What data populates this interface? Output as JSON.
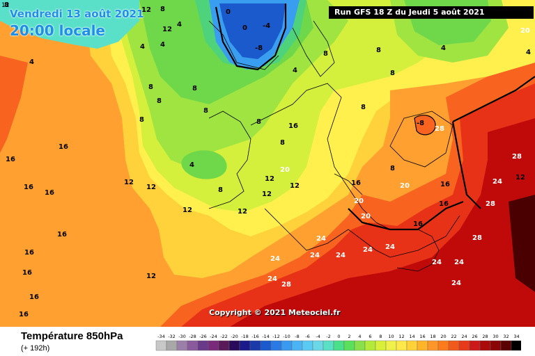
{
  "map": {
    "valid_date": "Vendredi 13 août 2021",
    "valid_time": "20:00 locale",
    "run": "Run GFS 18 Z du Jeudi 5 août 2021",
    "copyright": "Copyright © 2021 Meteociel.fr",
    "corner_label": "12"
  },
  "legend": {
    "title": "Température 850hPa",
    "subtitle": "(+ 192h)",
    "ticks": [
      "-34",
      "-32",
      "-30",
      "-28",
      "-26",
      "-24",
      "-22",
      "-20",
      "-18",
      "-16",
      "-14",
      "-12",
      "-10",
      "-8",
      "-6",
      "-4",
      "-2",
      "0",
      "2",
      "4",
      "6",
      "8",
      "10",
      "12",
      "14",
      "16",
      "18",
      "20",
      "22",
      "24",
      "26",
      "28",
      "30",
      "32",
      "34"
    ],
    "colors": [
      "#c8c8c8",
      "#a8a8a8",
      "#9c7fa8",
      "#8a5a9c",
      "#6a3a8a",
      "#7a2a7a",
      "#5a1a5a",
      "#2a0a5a",
      "#1a1a8a",
      "#1a3aaa",
      "#1a5acc",
      "#2a7ae6",
      "#3a9af0",
      "#4ab4f4",
      "#5acaf4",
      "#6ad8e6",
      "#5ae0c4",
      "#4ae08a",
      "#5ae05a",
      "#8ae04a",
      "#b4ea3a",
      "#d8f03a",
      "#f0f04a",
      "#ffe84a",
      "#ffd23a",
      "#ffb42a",
      "#ff962a",
      "#ff7a1a",
      "#f05a1a",
      "#e63a1a",
      "#cc1a1a",
      "#aa0a0a",
      "#8a0505",
      "#5a0202",
      "#000000"
    ]
  },
  "colors": {
    "t28": "#c00a0a",
    "t24": "#e83218",
    "t20": "#f86420",
    "t16": "#ffa030",
    "t12": "#ffd23c",
    "t10": "#fff04e",
    "t8": "#d4f03c",
    "t6": "#a0e442",
    "t4": "#6ed84a",
    "t2": "#4ed27c",
    "t0": "#5ae0c8",
    "tm4": "#3a9ef0",
    "tm8": "#1a5acc"
  },
  "labels": [
    {
      "t": "16"
    },
    {
      "t": "16"
    },
    {
      "t": "16"
    },
    {
      "t": "16"
    },
    {
      "t": "16"
    },
    {
      "t": "16"
    },
    {
      "t": "16"
    },
    {
      "t": "16"
    },
    {
      "t": "16"
    },
    {
      "t": "12"
    },
    {
      "t": "12"
    },
    {
      "t": "12"
    },
    {
      "t": "12"
    },
    {
      "t": "12"
    },
    {
      "t": "12"
    },
    {
      "t": "12"
    },
    {
      "t": "8"
    },
    {
      "t": "8"
    },
    {
      "t": "8"
    },
    {
      "t": "8"
    },
    {
      "t": "8"
    },
    {
      "t": "8"
    },
    {
      "t": "8"
    },
    {
      "t": "8"
    },
    {
      "t": "8"
    },
    {
      "t": "8"
    },
    {
      "t": "8"
    },
    {
      "t": "8"
    },
    {
      "t": "8"
    },
    {
      "t": "4"
    },
    {
      "t": "4"
    },
    {
      "t": "4"
    },
    {
      "t": "4"
    },
    {
      "t": "4"
    },
    {
      "t": "4"
    },
    {
      "t": "0"
    },
    {
      "t": "0"
    },
    {
      "t": "-4"
    },
    {
      "t": "-8"
    },
    {
      "t": "-8"
    },
    {
      "t": "20"
    },
    {
      "t": "20"
    },
    {
      "t": "20"
    },
    {
      "t": "20"
    },
    {
      "t": "24"
    },
    {
      "t": "24"
    },
    {
      "t": "24"
    },
    {
      "t": "24"
    },
    {
      "t": "24"
    },
    {
      "t": "24"
    },
    {
      "t": "24"
    },
    {
      "t": "24"
    },
    {
      "t": "24"
    },
    {
      "t": "24"
    },
    {
      "t": "24"
    },
    {
      "t": "28"
    },
    {
      "t": "28"
    },
    {
      "t": "28"
    },
    {
      "t": "28"
    },
    {
      "t": "28"
    },
    {
      "t": "16"
    },
    {
      "t": "16"
    },
    {
      "t": "16"
    },
    {
      "t": "16"
    },
    {
      "t": "16"
    },
    {
      "t": "12"
    },
    {
      "t": "12"
    },
    {
      "t": "12"
    },
    {
      "t": "12"
    },
    {
      "t": "20"
    },
    {
      "t": "8"
    },
    {
      "t": "8"
    },
    {
      "t": "4"
    },
    {
      "t": "4"
    },
    {
      "t": "4"
    }
  ]
}
